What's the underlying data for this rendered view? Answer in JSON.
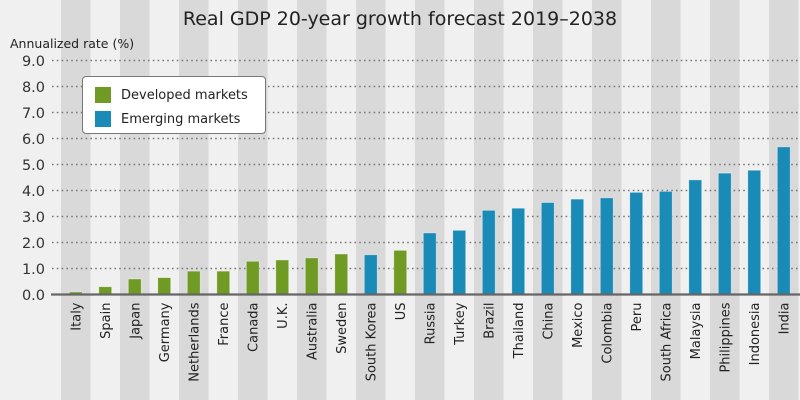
{
  "chart_data": {
    "type": "bar",
    "title": "Real GDP 20-year growth forecast 2019–2038",
    "ylabel": "Annualized rate (%)",
    "xlabel": "",
    "ylim": [
      0,
      9
    ],
    "yticks": [
      "0.0",
      "1.0",
      "2.0",
      "3.0",
      "4.0",
      "5.0",
      "6.0",
      "7.0",
      "8.0",
      "9.0"
    ],
    "grid": true,
    "legend_position": "top-left",
    "legend": [
      {
        "name": "Developed markets",
        "color": "#6f9a24"
      },
      {
        "name": "Emerging markets",
        "color": "#1a8ab6"
      }
    ],
    "categories": [
      "Italy",
      "Spain",
      "Japan",
      "Germany",
      "Netherlands",
      "France",
      "Canada",
      "U.K.",
      "Australia",
      "Sweden",
      "South Korea",
      "US",
      "Russia",
      "Turkey",
      "Brazil",
      "Thailand",
      "China",
      "Mexico",
      "Colombia",
      "Peru",
      "South Africa",
      "Malaysia",
      "Philippines",
      "Indonesia",
      "India"
    ],
    "values": [
      0.1,
      0.3,
      0.6,
      0.65,
      0.9,
      0.9,
      1.28,
      1.33,
      1.41,
      1.56,
      1.53,
      1.7,
      2.37,
      2.47,
      3.24,
      3.32,
      3.54,
      3.67,
      3.72,
      3.93,
      3.97,
      4.41,
      4.67,
      4.78,
      5.68
    ],
    "groups": [
      "Developed markets",
      "Developed markets",
      "Developed markets",
      "Developed markets",
      "Developed markets",
      "Developed markets",
      "Developed markets",
      "Developed markets",
      "Developed markets",
      "Developed markets",
      "Emerging markets",
      "Developed markets",
      "Emerging markets",
      "Emerging markets",
      "Emerging markets",
      "Emerging markets",
      "Emerging markets",
      "Emerging markets",
      "Emerging markets",
      "Emerging markets",
      "Emerging markets",
      "Emerging markets",
      "Emerging markets",
      "Emerging markets",
      "Emerging markets"
    ]
  },
  "colors": {
    "background": "#f0f0f0",
    "stripe": "#d9d9d9",
    "axis": "#666666",
    "grid": "#777777",
    "text": "#222222"
  }
}
